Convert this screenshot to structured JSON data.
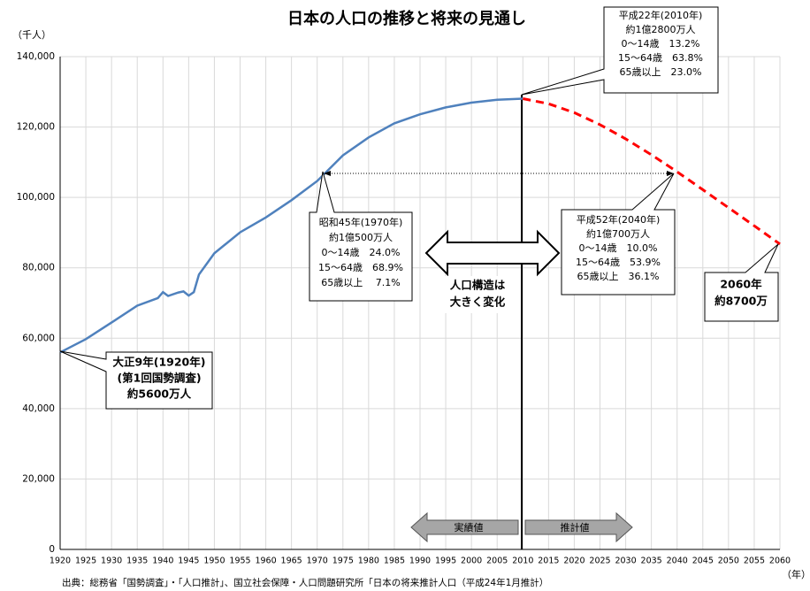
{
  "chart_data": {
    "type": "line",
    "title": "日本の人口の推移と将来の見通し",
    "y_label": "（千人）",
    "x_label": "（年）",
    "source": "出典：総務省「国勢調査」・「人口推計」、国立社会保障・人口問題研究所「日本の将来推計人口（平成24年1月推計）",
    "xlim": [
      1920,
      2060
    ],
    "ylim": [
      0,
      140000
    ],
    "xticks": [
      1920,
      1925,
      1930,
      1935,
      1940,
      1945,
      1950,
      1955,
      1960,
      1965,
      1970,
      1975,
      1980,
      1985,
      1990,
      1995,
      2000,
      2005,
      2010,
      2015,
      2020,
      2025,
      2030,
      2035,
      2040,
      2045,
      2050,
      2055,
      2060
    ],
    "yticks": [
      0,
      {
        "value": 20000,
        "label": "20,000"
      },
      {
        "value": 40000,
        "label": "40,000"
      },
      {
        "value": 60000,
        "label": "60,000"
      },
      {
        "value": 80000,
        "label": "80,000"
      },
      {
        "value": 100000,
        "label": "100,000"
      },
      {
        "value": 120000,
        "label": "120,000"
      },
      {
        "value": 140000,
        "label": "140,000"
      }
    ],
    "grid": true,
    "series": [
      {
        "name": "実績値",
        "color": "#4f81bd",
        "dash": false,
        "x": [
          1920,
          1925,
          1930,
          1935,
          1939,
          1940,
          1941,
          1943,
          1944,
          1945,
          1946,
          1947,
          1950,
          1955,
          1960,
          1965,
          1970,
          1975,
          1980,
          1985,
          1990,
          1995,
          2000,
          2005,
          2010
        ],
        "values": [
          55963,
          59737,
          64450,
          69254,
          71400,
          73100,
          72000,
          73000,
          73300,
          72100,
          73100,
          78101,
          84115,
          90077,
          94302,
          99209,
          104665,
          111940,
          117060,
          121049,
          123611,
          125570,
          126926,
          127768,
          128057
        ]
      },
      {
        "name": "推計値",
        "color": "#ff0000",
        "dash": true,
        "x": [
          2010,
          2015,
          2020,
          2025,
          2030,
          2035,
          2040,
          2045,
          2050,
          2055,
          2060
        ],
        "values": [
          128057,
          126597,
          124100,
          120659,
          116618,
          112124,
          107276,
          102210,
          97076,
          91933,
          86737
        ]
      }
    ],
    "annotations": [
      {
        "lines": [
          "平成22年(2010年)",
          "約1億2800万人",
          "0～14歳　13.2%",
          "15～64歳　63.8%",
          "65歳以上　23.0%"
        ]
      },
      {
        "lines": [
          "昭和45年(1970年)",
          "約1億500万人",
          "0～14歳　24.0%",
          "15～64歳　68.9%",
          "65歳以上　 7.1%"
        ]
      },
      {
        "lines": [
          "平成52年(2040年)",
          "約1億700万人",
          "0～14歳　10.0%",
          "15～64歳　53.9%",
          "65歳以上　36.1%"
        ]
      },
      {
        "lines": [
          "2060年",
          "約8700万"
        ]
      },
      {
        "lines": [
          "大正9年(1920年)",
          "(第1回国勢調査)",
          "約5600万人"
        ]
      },
      {
        "lines": [
          "人口構造は",
          "大きく変化"
        ]
      }
    ]
  }
}
